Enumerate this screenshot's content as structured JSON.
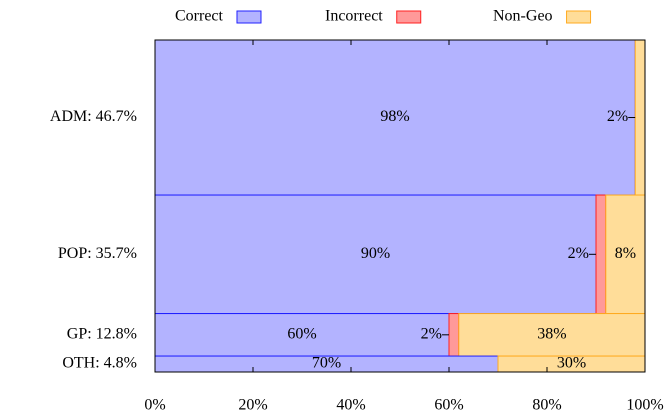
{
  "chart_data": {
    "type": "mekko",
    "categories": [
      "ADM: 46.7%",
      "POP: 35.7%",
      "GP: 12.8%",
      "OTH: 4.8%"
    ],
    "shares": [
      46.7,
      35.7,
      12.8,
      4.8
    ],
    "series": [
      {
        "name": "Correct",
        "color": "#b3b3ff",
        "stroke": "#2020ff",
        "values": [
          98,
          90,
          60,
          70
        ],
        "value_labels": [
          "98%",
          "90%",
          "60%",
          "70%"
        ]
      },
      {
        "name": "Incorrect",
        "color": "#ff9999",
        "stroke": "#ff2020",
        "values": [
          0,
          2,
          2,
          0
        ],
        "value_labels": [
          null,
          "2%",
          "2%",
          null
        ]
      },
      {
        "name": "Non-Geo",
        "color": "#ffdd99",
        "stroke": "#ffaa20",
        "values": [
          2,
          8,
          38,
          30
        ],
        "value_labels": [
          "2%",
          "8%",
          "38%",
          "30%"
        ]
      }
    ],
    "xlim": [
      0,
      100
    ],
    "xticks": [
      {
        "value": 0,
        "label": "0%"
      },
      {
        "value": 20,
        "label": "20%"
      },
      {
        "value": 40,
        "label": "40%"
      },
      {
        "value": 60,
        "label": "60%"
      },
      {
        "value": 80,
        "label": "80%"
      },
      {
        "value": 100,
        "label": "100%"
      }
    ],
    "legend": "top"
  }
}
